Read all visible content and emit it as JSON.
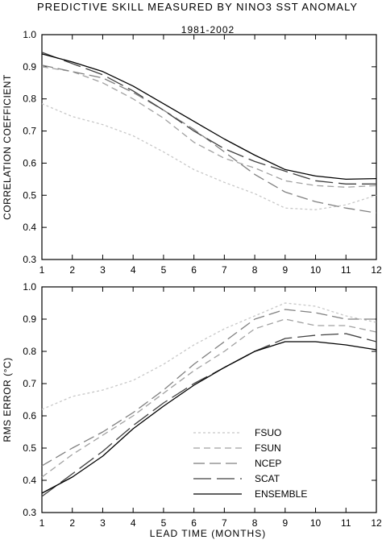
{
  "figure": {
    "title": "PREDICTIVE SKILL MEASURED BY NINO3 SST ANOMALY",
    "subtitle": "1981-2002",
    "xlabel": "LEAD TIME (MONTHS)"
  },
  "chart_data": [
    {
      "type": "line",
      "title": "PREDICTIVE SKILL MEASURED BY NINO3 SST ANOMALY",
      "subtitle": "1981-2002",
      "xlabel": "",
      "ylabel": "CORRELATION COEFFICIENT",
      "x": [
        1,
        2,
        3,
        4,
        5,
        6,
        7,
        8,
        9,
        10,
        11,
        12
      ],
      "xlim": [
        1,
        12
      ],
      "ylim": [
        0.3,
        1.0
      ],
      "xticks": [
        "1",
        "2",
        "3",
        "4",
        "5",
        "6",
        "7",
        "8",
        "9",
        "10",
        "11",
        "12"
      ],
      "yticks": [
        "0.3",
        "0.4",
        "0.5",
        "0.6",
        "0.7",
        "0.8",
        "0.9",
        "1.0"
      ],
      "series": [
        {
          "name": "FSUO",
          "color": "#c8c8c8",
          "dash": "short",
          "values": [
            0.785,
            0.745,
            0.72,
            0.685,
            0.635,
            0.58,
            0.54,
            0.505,
            0.46,
            0.455,
            0.47,
            0.5
          ]
        },
        {
          "name": "FSUN",
          "color": "#a0a0a0",
          "dash": "medium",
          "values": [
            0.9,
            0.885,
            0.85,
            0.8,
            0.74,
            0.665,
            0.615,
            0.585,
            0.545,
            0.53,
            0.525,
            0.53
          ]
        },
        {
          "name": "NCEP",
          "color": "#808080",
          "dash": "long",
          "values": [
            0.905,
            0.885,
            0.865,
            0.82,
            0.765,
            0.705,
            0.635,
            0.565,
            0.51,
            0.48,
            0.46,
            0.445
          ]
        },
        {
          "name": "SCAT",
          "color": "#404040",
          "dash": "longlong",
          "values": [
            0.945,
            0.91,
            0.875,
            0.825,
            0.765,
            0.7,
            0.645,
            0.605,
            0.575,
            0.545,
            0.535,
            0.535
          ]
        },
        {
          "name": "ENSEMBLE",
          "color": "#000000",
          "dash": "solid",
          "values": [
            0.94,
            0.915,
            0.885,
            0.84,
            0.785,
            0.73,
            0.675,
            0.625,
            0.58,
            0.56,
            0.55,
            0.552
          ]
        }
      ]
    },
    {
      "type": "line",
      "xlabel": "LEAD TIME (MONTHS)",
      "ylabel": "RMS ERROR (°C)",
      "x": [
        1,
        2,
        3,
        4,
        5,
        6,
        7,
        8,
        9,
        10,
        11,
        12
      ],
      "xlim": [
        1,
        12
      ],
      "ylim": [
        0.3,
        1.0
      ],
      "xticks": [
        "1",
        "2",
        "3",
        "4",
        "5",
        "6",
        "7",
        "8",
        "9",
        "10",
        "11",
        "12"
      ],
      "yticks": [
        "0.3",
        "0.4",
        "0.5",
        "0.6",
        "0.7",
        "0.8",
        "0.9",
        "1.0"
      ],
      "legend": "bottom-right",
      "series": [
        {
          "name": "FSUO",
          "color": "#c8c8c8",
          "dash": "short",
          "values": [
            0.62,
            0.66,
            0.68,
            0.71,
            0.76,
            0.82,
            0.87,
            0.91,
            0.95,
            0.94,
            0.91,
            0.89
          ]
        },
        {
          "name": "FSUN",
          "color": "#a0a0a0",
          "dash": "medium",
          "values": [
            0.41,
            0.48,
            0.54,
            0.6,
            0.67,
            0.74,
            0.8,
            0.87,
            0.9,
            0.88,
            0.88,
            0.86
          ]
        },
        {
          "name": "NCEP",
          "color": "#808080",
          "dash": "long",
          "values": [
            0.445,
            0.5,
            0.55,
            0.61,
            0.68,
            0.76,
            0.83,
            0.9,
            0.93,
            0.92,
            0.9,
            0.9
          ]
        },
        {
          "name": "SCAT",
          "color": "#404040",
          "dash": "longlong",
          "values": [
            0.35,
            0.42,
            0.49,
            0.57,
            0.64,
            0.7,
            0.75,
            0.8,
            0.84,
            0.85,
            0.855,
            0.83
          ]
        },
        {
          "name": "ENSEMBLE",
          "color": "#000000",
          "dash": "solid",
          "values": [
            0.36,
            0.41,
            0.475,
            0.56,
            0.63,
            0.695,
            0.75,
            0.8,
            0.83,
            0.83,
            0.82,
            0.805
          ]
        }
      ]
    }
  ]
}
